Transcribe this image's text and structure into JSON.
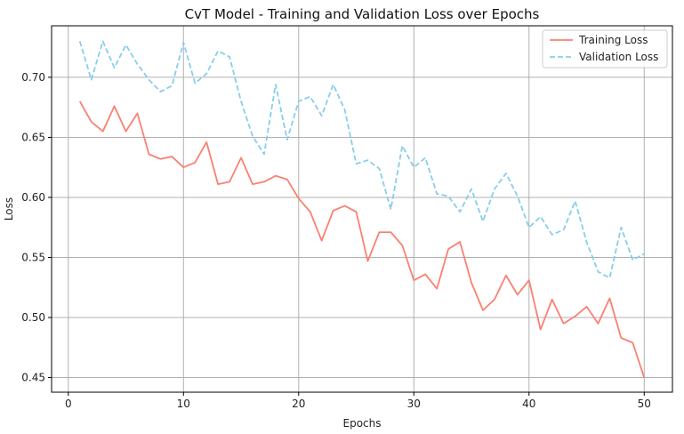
{
  "chart_data": {
    "type": "line",
    "title": "CvT Model - Training and Validation Loss over Epochs",
    "xlabel": "Epochs",
    "ylabel": "Loss",
    "xlim": [
      -1.45,
      52.45
    ],
    "ylim": [
      0.4378,
      0.7429
    ],
    "x_ticks": [
      0,
      10,
      20,
      30,
      40,
      50
    ],
    "y_ticks": [
      0.45,
      0.5,
      0.55,
      0.6,
      0.65,
      0.7
    ],
    "x_tick_labels": [
      "0",
      "10",
      "20",
      "30",
      "40",
      "50"
    ],
    "y_tick_labels": [
      "0.45",
      "0.50",
      "0.55",
      "0.60",
      "0.65",
      "0.70"
    ],
    "grid": true,
    "legend_position": "top-right",
    "x": [
      1,
      2,
      3,
      4,
      5,
      6,
      7,
      8,
      9,
      10,
      11,
      12,
      13,
      14,
      15,
      16,
      17,
      18,
      19,
      20,
      21,
      22,
      23,
      24,
      25,
      26,
      27,
      28,
      29,
      30,
      31,
      32,
      33,
      34,
      35,
      36,
      37,
      38,
      39,
      40,
      41,
      42,
      43,
      44,
      45,
      46,
      47,
      48,
      49,
      50
    ],
    "series": [
      {
        "name": "Training Loss",
        "color": "#fa8072",
        "dash": "solid",
        "values": [
          0.68,
          0.663,
          0.655,
          0.676,
          0.655,
          0.67,
          0.636,
          0.632,
          0.634,
          0.625,
          0.629,
          0.646,
          0.611,
          0.613,
          0.633,
          0.611,
          0.613,
          0.618,
          0.615,
          0.599,
          0.588,
          0.564,
          0.589,
          0.593,
          0.588,
          0.547,
          0.571,
          0.571,
          0.56,
          0.531,
          0.536,
          0.524,
          0.557,
          0.563,
          0.529,
          0.506,
          0.515,
          0.535,
          0.519,
          0.531,
          0.49,
          0.515,
          0.495,
          0.501,
          0.509,
          0.495,
          0.516,
          0.483,
          0.479,
          0.45
        ]
      },
      {
        "name": "Validation Loss",
        "color": "#87ceeb",
        "dash": "dashed",
        "values": [
          0.73,
          0.698,
          0.73,
          0.708,
          0.727,
          0.711,
          0.698,
          0.688,
          0.693,
          0.729,
          0.695,
          0.703,
          0.722,
          0.717,
          0.68,
          0.651,
          0.636,
          0.694,
          0.648,
          0.68,
          0.684,
          0.668,
          0.694,
          0.673,
          0.628,
          0.631,
          0.624,
          0.59,
          0.643,
          0.625,
          0.633,
          0.603,
          0.601,
          0.588,
          0.607,
          0.58,
          0.607,
          0.62,
          0.601,
          0.575,
          0.584,
          0.569,
          0.573,
          0.597,
          0.563,
          0.538,
          0.533,
          0.575,
          0.548,
          0.553
        ]
      }
    ]
  }
}
